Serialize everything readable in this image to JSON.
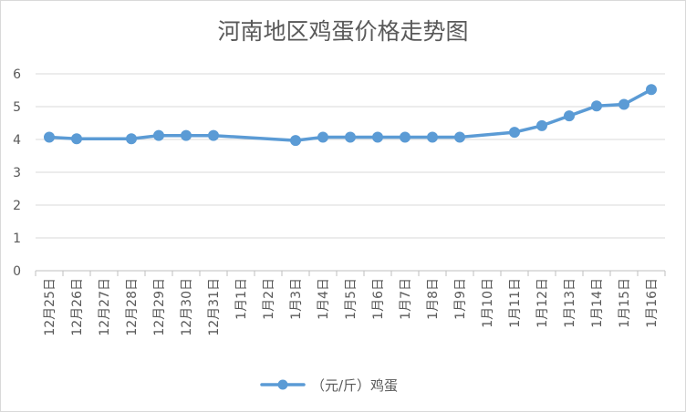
{
  "chart_data": {
    "type": "line",
    "title": "河南地区鸡蛋价格走势图",
    "categories": [
      "12月25日",
      "12月26日",
      "12月27日",
      "12月28日",
      "12月29日",
      "12月30日",
      "12月31日",
      "1月1日",
      "1月2日",
      "1月3日",
      "1月4日",
      "1月5日",
      "1月6日",
      "1月7日",
      "1月8日",
      "1月9日",
      "1月10日",
      "1月11日",
      "1月12日",
      "1月13日",
      "1月14日",
      "1月15日",
      "1月16日"
    ],
    "series": [
      {
        "name": "（元/斤）鸡蛋",
        "values": [
          4.07,
          4.02,
          null,
          4.02,
          4.12,
          4.12,
          4.12,
          null,
          null,
          3.97,
          4.07,
          4.07,
          4.07,
          4.07,
          4.07,
          4.07,
          null,
          4.22,
          4.42,
          4.72,
          5.02,
          5.07,
          5.52
        ],
        "color": "#5b9bd5"
      }
    ],
    "yticks": [
      "0",
      "1",
      "2",
      "3",
      "4",
      "5",
      "6"
    ],
    "ylim": [
      0,
      6
    ],
    "grid": true,
    "legend": "bottom",
    "xlabel": "",
    "ylabel": ""
  }
}
